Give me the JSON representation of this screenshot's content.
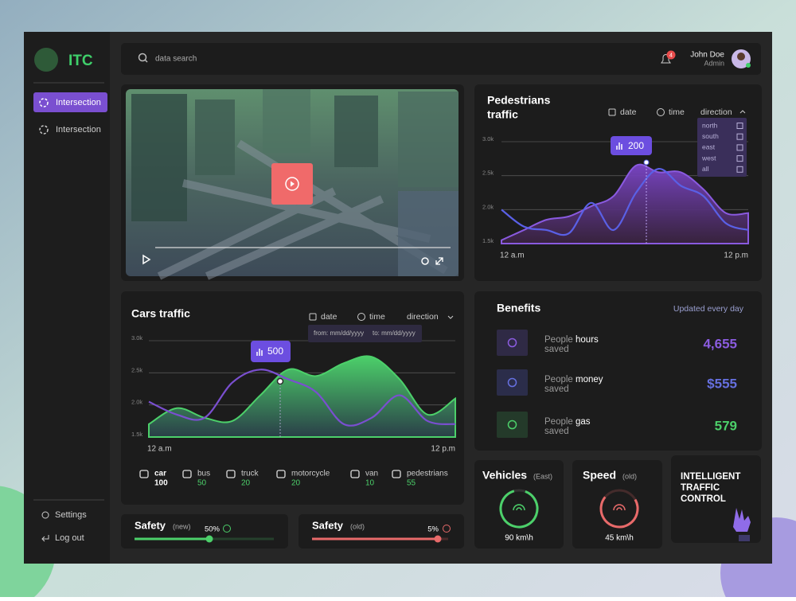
{
  "sidebar": {
    "brand": "ITC",
    "nav": [
      "Intersection",
      "Intersection"
    ],
    "footer": [
      "Settings",
      "Log out"
    ]
  },
  "topbar": {
    "search": "data search",
    "notifications": 4,
    "user_name": "John Doe",
    "user_role": "Admin"
  },
  "pedestrians_chart": {
    "type": "area",
    "title_lines": [
      "Pedestrians",
      "traffic"
    ],
    "filters": [
      "date",
      "time",
      "direction"
    ],
    "direction_options": [
      "north",
      "south",
      "east",
      "west",
      "all"
    ],
    "ylim": [
      1.5,
      3.0
    ],
    "yticks": [
      {
        "value": 1.5,
        "label": "1.5k"
      },
      {
        "value": 2.0,
        "label": "2.0k"
      },
      {
        "value": 2.5,
        "label": "2.5k"
      },
      {
        "value": 3.0,
        "label": "3.0k"
      }
    ],
    "x_labels": [
      "12 a.m",
      "12 p.m"
    ],
    "highlight": 200,
    "series": [
      {
        "color": "#8a5ae0",
        "area": true,
        "values": [
          1.55,
          1.7,
          1.85,
          1.9,
          2.05,
          2.2,
          2.65,
          2.55,
          2.55,
          2.3,
          1.95,
          1.95
        ]
      },
      {
        "color": "#5a60e6",
        "area": false,
        "values": [
          2.0,
          1.75,
          1.7,
          1.65,
          2.1,
          1.7,
          2.25,
          2.6,
          2.35,
          2.2,
          1.8,
          1.7
        ]
      }
    ]
  },
  "cars_chart": {
    "type": "area",
    "title": "Cars traffic",
    "filters": [
      "date",
      "time",
      "direction"
    ],
    "date_range": [
      "from: mm/dd/yyyy",
      "to: mm/dd/yyyy"
    ],
    "ylim": [
      1.5,
      3.0
    ],
    "yticks": [
      {
        "value": 1.5,
        "label": "1.5k"
      },
      {
        "value": 2.0,
        "label": "2.0k"
      },
      {
        "value": 2.5,
        "label": "2.5k"
      },
      {
        "value": 3.0,
        "label": "3.0k"
      }
    ],
    "x_labels": [
      "12 a.m",
      "12 p.m"
    ],
    "highlight": 500,
    "series": [
      {
        "color": "#4cd06a",
        "area": true,
        "values": [
          1.7,
          1.95,
          1.8,
          1.75,
          2.15,
          2.55,
          2.45,
          2.65,
          2.75,
          2.4,
          1.85,
          2.1
        ]
      },
      {
        "color": "#7a4fd0",
        "area": false,
        "values": [
          2.05,
          1.85,
          1.8,
          2.35,
          2.55,
          2.4,
          2.2,
          1.7,
          1.8,
          2.15,
          1.75,
          1.7
        ]
      }
    ],
    "legend": [
      {
        "name": "car",
        "count": 100
      },
      {
        "name": "bus",
        "count": 50
      },
      {
        "name": "truck",
        "count": 20
      },
      {
        "name": "motorcycle",
        "count": 20
      },
      {
        "name": "van",
        "count": 10
      },
      {
        "name": "pedestrians",
        "count": 55
      }
    ]
  },
  "benefits": {
    "title": "Benefits",
    "note": "Updated every day",
    "items": [
      {
        "prefix": "People",
        "key": "hours",
        "suffix": "saved",
        "value": "4,655"
      },
      {
        "prefix": "People",
        "key": "money",
        "suffix": "saved",
        "value": "$555"
      },
      {
        "prefix": "People",
        "key": "gas",
        "suffix": "saved",
        "value": "579"
      }
    ]
  },
  "vehicles": {
    "title": "Vehicles",
    "qualifier": "(East)",
    "reading": "90 km\\h"
  },
  "speed": {
    "title": "Speed",
    "qualifier": "(old)",
    "reading": "45 km\\h"
  },
  "itc_card": {
    "lines": [
      "INTELLIGENT",
      "TRAFFIC",
      "CONTROL"
    ]
  },
  "safety": [
    {
      "title": "Safety",
      "qualifier": "(new)",
      "value": "50%"
    },
    {
      "title": "Safety",
      "qualifier": "(old)",
      "value": "5%"
    }
  ]
}
